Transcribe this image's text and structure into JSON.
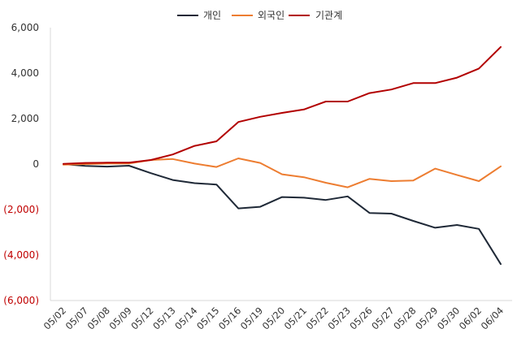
{
  "chart_data": {
    "type": "line",
    "title": "",
    "xlabel": "",
    "ylabel": "",
    "categories": [
      "05/02",
      "05/07",
      "05/08",
      "05/09",
      "05/12",
      "05/13",
      "05/14",
      "05/15",
      "05/16",
      "05/19",
      "05/20",
      "05/21",
      "05/22",
      "05/23",
      "05/26",
      "05/27",
      "05/28",
      "05/29",
      "05/30",
      "06/02",
      "06/04"
    ],
    "ylim": [
      -6000,
      6000
    ],
    "yticks": [
      -6000,
      -4000,
      -2000,
      0,
      2000,
      4000,
      6000
    ],
    "ytick_labels": [
      "(6,000)",
      "(4,000)",
      "(2,000)",
      "0",
      "2,000",
      "4,000",
      "6,000"
    ],
    "negative_label_color": "#c00000",
    "positive_label_color": "#333333",
    "grid": false,
    "legend_position": "top",
    "series": [
      {
        "name": "개인",
        "color": "#1f2937",
        "values": [
          0,
          -80,
          -110,
          -70,
          -400,
          -700,
          -840,
          -900,
          -1950,
          -1880,
          -1450,
          -1480,
          -1580,
          -1420,
          -2150,
          -2180,
          -2500,
          -2800,
          -2680,
          -2850,
          -4400
        ]
      },
      {
        "name": "외국인",
        "color": "#ed7d31",
        "values": [
          -30,
          0,
          20,
          30,
          180,
          220,
          20,
          -130,
          250,
          50,
          -450,
          -580,
          -820,
          -1020,
          -650,
          -750,
          -720,
          -200,
          -480,
          -750,
          -100
        ]
      },
      {
        "name": "기관계",
        "color": "#b20000",
        "values": [
          10,
          50,
          60,
          60,
          180,
          420,
          800,
          1000,
          1850,
          2080,
          2250,
          2400,
          2750,
          2750,
          3120,
          3280,
          3560,
          3560,
          3800,
          4200,
          5150
        ]
      }
    ]
  }
}
